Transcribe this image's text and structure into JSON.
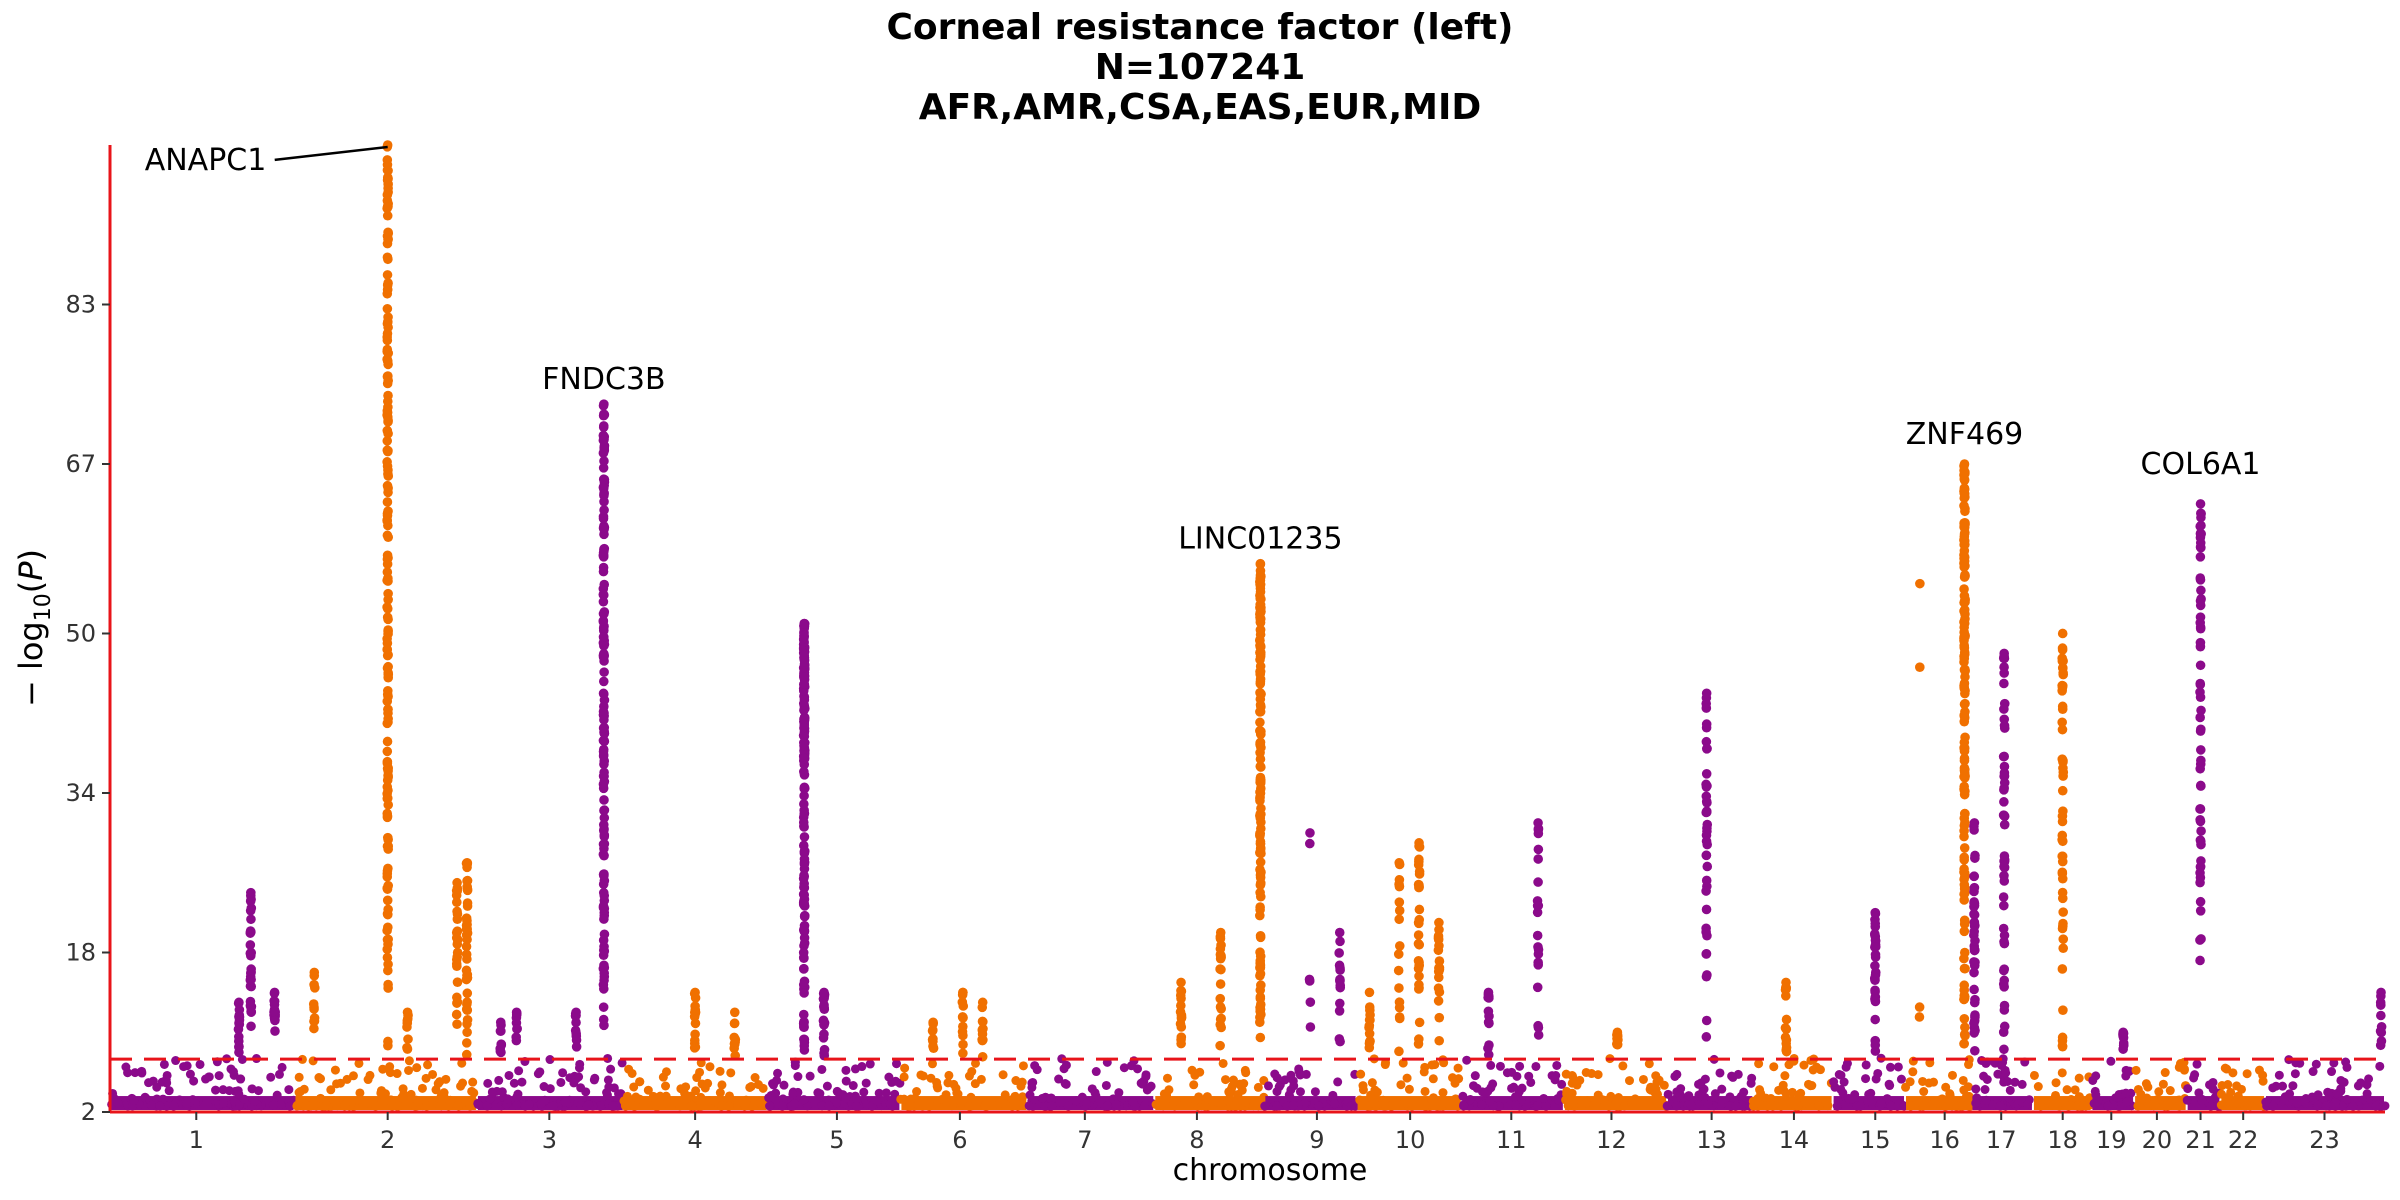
{
  "chart_data": {
    "type": "scatter",
    "subtype": "manhattan",
    "title": [
      "Corneal resistance factor (left)",
      "N=107241",
      "AFR,AMR,CSA,EAS,EUR,MID"
    ],
    "xlabel": "chromosome",
    "ylabel_main": "− log",
    "ylabel_sub": "10",
    "ylabel_var": "P",
    "yticks": [
      2,
      18,
      34,
      50,
      67,
      83
    ],
    "ylim": [
      2,
      99
    ],
    "significance_line": 7.3,
    "colors": {
      "odd": "#8B0A8B",
      "even": "#F07000",
      "threshold": "#E8141A",
      "axis": "#E8141A"
    },
    "chromosomes": [
      {
        "label": "1",
        "start": 0,
        "end": 186,
        "tick": 87
      },
      {
        "label": "2",
        "start": 186,
        "end": 370,
        "tick": 280
      },
      {
        "label": "3",
        "start": 370,
        "end": 518,
        "tick": 443
      },
      {
        "label": "4",
        "start": 518,
        "end": 663,
        "tick": 590
      },
      {
        "label": "5",
        "start": 663,
        "end": 797,
        "tick": 733
      },
      {
        "label": "6",
        "start": 797,
        "end": 925,
        "tick": 857
      },
      {
        "label": "7",
        "start": 925,
        "end": 1053,
        "tick": 983
      },
      {
        "label": "8",
        "start": 1053,
        "end": 1164,
        "tick": 1096
      },
      {
        "label": "9",
        "start": 1164,
        "end": 1257,
        "tick": 1217
      },
      {
        "label": "10",
        "start": 1257,
        "end": 1363,
        "tick": 1311
      },
      {
        "label": "11",
        "start": 1363,
        "end": 1466,
        "tick": 1413
      },
      {
        "label": "12",
        "start": 1466,
        "end": 1570,
        "tick": 1514
      },
      {
        "label": "13",
        "start": 1570,
        "end": 1657,
        "tick": 1615
      },
      {
        "label": "14",
        "start": 1657,
        "end": 1737,
        "tick": 1698
      },
      {
        "label": "15",
        "start": 1737,
        "end": 1810,
        "tick": 1780
      },
      {
        "label": "16",
        "start": 1810,
        "end": 1877,
        "tick": 1850
      },
      {
        "label": "17",
        "start": 1877,
        "end": 1939,
        "tick": 1907
      },
      {
        "label": "18",
        "start": 1939,
        "end": 1998,
        "tick": 1969
      },
      {
        "label": "19",
        "start": 1998,
        "end": 2041,
        "tick": 2018
      },
      {
        "label": "20",
        "start": 2041,
        "end": 2094,
        "tick": 2064
      },
      {
        "label": "21",
        "start": 2094,
        "end": 2128,
        "tick": 2108
      },
      {
        "label": "22",
        "start": 2128,
        "end": 2173,
        "tick": 2151
      },
      {
        "label": "23",
        "start": 2173,
        "end": 2294,
        "tick": 2233
      }
    ],
    "peaks": [
      {
        "x": 130,
        "top": 13,
        "n": 14,
        "label": ""
      },
      {
        "x": 142,
        "top": 24,
        "n": 30,
        "label": ""
      },
      {
        "x": 166,
        "top": 14,
        "n": 14,
        "label": ""
      },
      {
        "x": 206,
        "top": 16,
        "n": 10,
        "label": ""
      },
      {
        "x": 280,
        "top": 99,
        "n": 170,
        "label": "ANAPC1"
      },
      {
        "x": 300,
        "top": 12,
        "n": 8,
        "label": ""
      },
      {
        "x": 350,
        "top": 25,
        "n": 25,
        "label": ""
      },
      {
        "x": 360,
        "top": 27,
        "n": 40,
        "label": ""
      },
      {
        "x": 394,
        "top": 11,
        "n": 8,
        "label": ""
      },
      {
        "x": 410,
        "top": 12,
        "n": 8,
        "label": ""
      },
      {
        "x": 470,
        "top": 12,
        "n": 10,
        "label": ""
      },
      {
        "x": 498,
        "top": 73,
        "n": 150,
        "label": "FNDC3B"
      },
      {
        "x": 590,
        "top": 14,
        "n": 14,
        "label": ""
      },
      {
        "x": 630,
        "top": 12,
        "n": 10,
        "label": ""
      },
      {
        "x": 700,
        "top": 51,
        "n": 160,
        "label": ""
      },
      {
        "x": 720,
        "top": 14,
        "n": 20,
        "label": ""
      },
      {
        "x": 830,
        "top": 11,
        "n": 8,
        "label": ""
      },
      {
        "x": 860,
        "top": 14,
        "n": 12,
        "label": ""
      },
      {
        "x": 880,
        "top": 13,
        "n": 10,
        "label": ""
      },
      {
        "x": 1080,
        "top": 15,
        "n": 14,
        "label": ""
      },
      {
        "x": 1120,
        "top": 20,
        "n": 20,
        "label": ""
      },
      {
        "x": 1160,
        "top": 57,
        "n": 150,
        "label": "LINC01235"
      },
      {
        "x": 1210,
        "top": 30,
        "n": 5,
        "label": ""
      },
      {
        "x": 1240,
        "top": 20,
        "n": 14,
        "label": ""
      },
      {
        "x": 1270,
        "top": 14,
        "n": 12,
        "label": ""
      },
      {
        "x": 1300,
        "top": 27,
        "n": 16,
        "label": ""
      },
      {
        "x": 1320,
        "top": 29,
        "n": 30,
        "label": ""
      },
      {
        "x": 1340,
        "top": 21,
        "n": 18,
        "label": ""
      },
      {
        "x": 1390,
        "top": 14,
        "n": 12,
        "label": ""
      },
      {
        "x": 1440,
        "top": 31,
        "n": 20,
        "label": ""
      },
      {
        "x": 1520,
        "top": 10,
        "n": 10,
        "label": ""
      },
      {
        "x": 1610,
        "top": 44,
        "n": 40,
        "label": ""
      },
      {
        "x": 1690,
        "top": 15,
        "n": 14,
        "label": ""
      },
      {
        "x": 1780,
        "top": 22,
        "n": 30,
        "label": ""
      },
      {
        "x": 1825,
        "top": 55,
        "n": 3,
        "label": ""
      },
      {
        "x": 1870,
        "top": 67,
        "n": 160,
        "label": "ZNF469"
      },
      {
        "x": 1880,
        "top": 31,
        "n": 40,
        "label": ""
      },
      {
        "x": 1910,
        "top": 48,
        "n": 50,
        "label": ""
      },
      {
        "x": 1969,
        "top": 50,
        "n": 50,
        "label": ""
      },
      {
        "x": 2030,
        "top": 10,
        "n": 8,
        "label": ""
      },
      {
        "x": 2108,
        "top": 63,
        "n": 60,
        "label": "COL6A1"
      },
      {
        "x": 2290,
        "top": 14,
        "n": 10,
        "label": ""
      }
    ],
    "labels": [
      {
        "text": "ANAPC1",
        "x": 280,
        "y": 99,
        "tx": 35,
        "ty": 96.5,
        "anchor": "start",
        "line": true
      },
      {
        "text": "FNDC3B",
        "x": 498,
        "y": 73,
        "tx": 498,
        "ty": 74.5,
        "anchor": "middle",
        "line": false
      },
      {
        "text": "LINC01235",
        "x": 1160,
        "y": 57,
        "tx": 1160,
        "ty": 58.5,
        "anchor": "middle",
        "line": false
      },
      {
        "text": "ZNF469",
        "x": 1870,
        "y": 67,
        "tx": 1870,
        "ty": 69,
        "anchor": "middle",
        "line": false
      },
      {
        "text": "COL6A1",
        "x": 2108,
        "y": 63,
        "tx": 2108,
        "ty": 66,
        "anchor": "middle",
        "line": false
      }
    ]
  }
}
